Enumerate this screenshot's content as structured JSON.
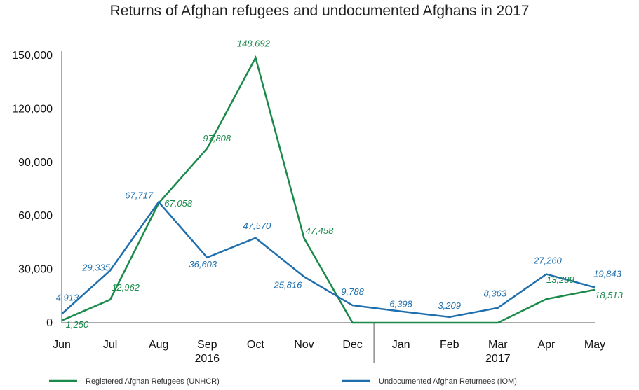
{
  "chart_data": {
    "type": "line",
    "title": "Returns of Afghan refugees and undocumented Afghans in 2017",
    "categories": [
      "Jun",
      "Jul",
      "Aug",
      "Sep",
      "Oct",
      "Nov",
      "Dec",
      "Jan",
      "Feb",
      "Mar",
      "Apr",
      "May"
    ],
    "year_groups": [
      {
        "label": "2016",
        "under": "Sep"
      },
      {
        "label": "2017",
        "under": "Mar"
      }
    ],
    "ylim": [
      0,
      150000
    ],
    "yticks": [
      0,
      30000,
      60000,
      90000,
      120000,
      150000
    ],
    "ytick_labels": [
      "0",
      "30,000",
      "60,000",
      "90,000",
      "120,000",
      "150,000"
    ],
    "grid": false,
    "legend_position": "bottom",
    "series": [
      {
        "name": "Registered Afghan Refugees (UNHCR)",
        "color": "#1a8a4a",
        "values": [
          1250,
          12962,
          67058,
          97808,
          148692,
          47458,
          0,
          0,
          0,
          0,
          13289,
          18513
        ],
        "labels": [
          "1,250",
          "12,962",
          "67,058",
          "97,808",
          "148,692",
          "47,458",
          "",
          "",
          "",
          "",
          "13,289",
          "18,513"
        ]
      },
      {
        "name": "Undocumented Afghan Returnees (IOM)",
        "color": "#1f6fae",
        "values": [
          4913,
          29335,
          67717,
          36603,
          47570,
          25816,
          9788,
          6398,
          3209,
          8363,
          27260,
          19843
        ],
        "labels": [
          "4,913",
          "29,335",
          "67,717",
          "36,603",
          "47,570",
          "25,816",
          "9,788",
          "6,398",
          "3,209",
          "8,363",
          "27,260",
          "19,843"
        ]
      }
    ]
  }
}
